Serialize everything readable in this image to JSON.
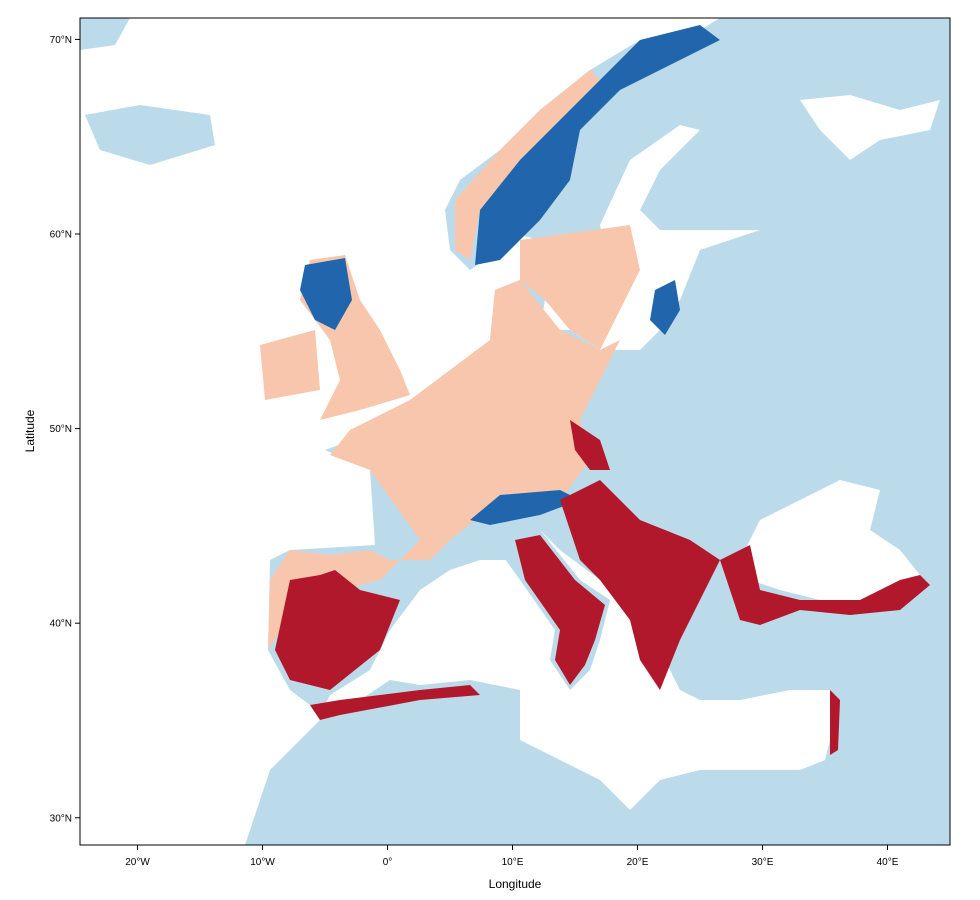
{
  "chart_data": {
    "type": "map",
    "x_label": "Longitude",
    "y_label": "Latitude",
    "xlim": [
      -24.6,
      45
    ],
    "ylim": [
      28.6,
      71.1
    ],
    "xticks": [
      {
        "value": -20,
        "label": "20°W"
      },
      {
        "value": -10,
        "label": "10°W"
      },
      {
        "value": 0,
        "label": "0°"
      },
      {
        "value": 10,
        "label": "10°E"
      },
      {
        "value": 20,
        "label": "20°E"
      },
      {
        "value": 30,
        "label": "30°E"
      },
      {
        "value": 40,
        "label": "40°E"
      }
    ],
    "yticks": [
      {
        "value": 30,
        "label": "30°N"
      },
      {
        "value": 40,
        "label": "40°N"
      },
      {
        "value": 50,
        "label": "50°N"
      },
      {
        "value": 60,
        "label": "60°N"
      },
      {
        "value": 70,
        "label": "70°N"
      }
    ]
  }
}
